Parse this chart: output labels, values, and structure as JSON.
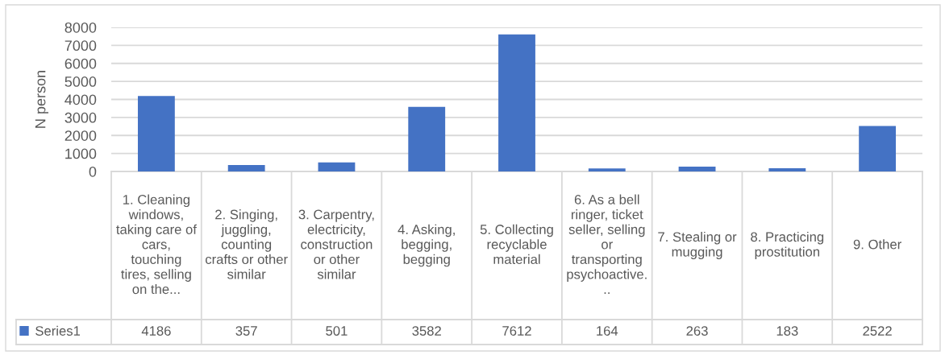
{
  "chart_data": {
    "type": "bar",
    "ylabel": "N person",
    "categories": [
      "1. Cleaning windows, taking care of cars, touching tires, selling on the...",
      "2. Singing, juggling, counting crafts or other similar",
      "3. Carpentry, electricity, construction or other similar",
      "4. Asking, begging, begging",
      "5. Collecting recyclable material",
      "6. As a bell ringer, ticket seller, selling or transporting psychoactive...",
      "7. Stealing or mugging",
      "8. Practicing prostitution",
      "9. Other"
    ],
    "series": [
      {
        "name": "Series1",
        "color": "#4472c4",
        "values": [
          4186,
          357,
          501,
          3582,
          7612,
          164,
          263,
          183,
          2522
        ]
      }
    ],
    "ylim": [
      0,
      8000
    ],
    "yticks": [
      0,
      1000,
      2000,
      3000,
      4000,
      5000,
      6000,
      7000,
      8000
    ],
    "grid": "y",
    "data_labels": true,
    "legend": "bottom left"
  }
}
